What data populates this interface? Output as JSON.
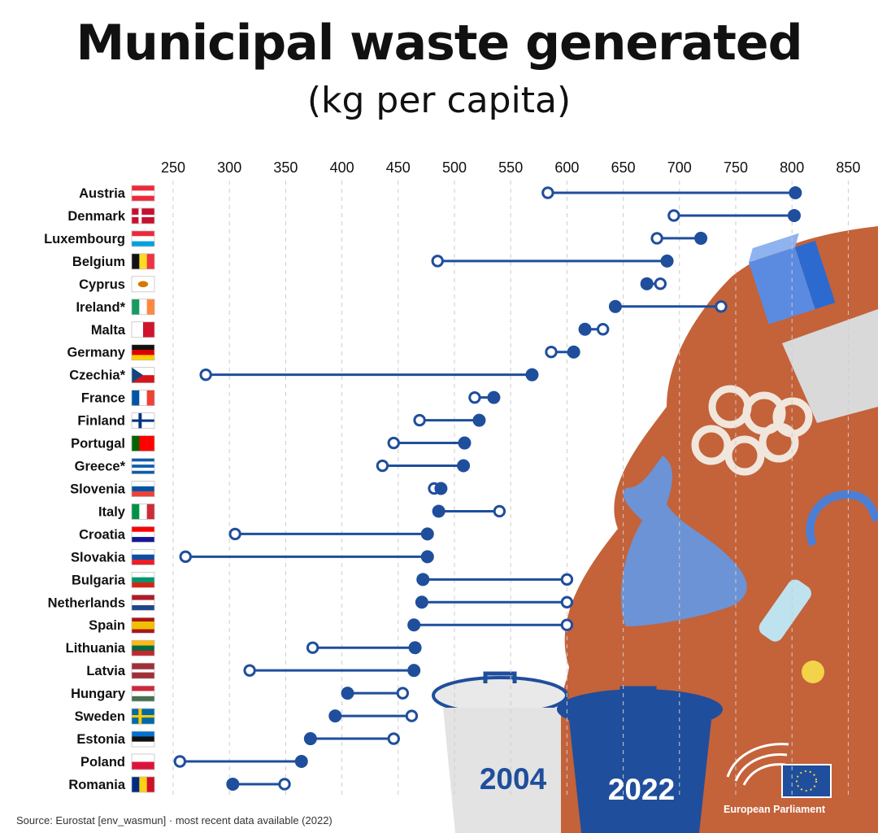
{
  "header": {
    "title": "Municipal waste generated",
    "subtitle": "(kg per capita)"
  },
  "footer": {
    "source": "Source: Eurostat [env_wasmun]  ·  most recent data available (2022)",
    "organisation": "European Parliament"
  },
  "legend": {
    "bin_2004": "2004",
    "bin_2022": "2022"
  },
  "colors": {
    "accent": "#1f4e9c",
    "background_blob": "#c4623a",
    "grid": "#cccccc"
  },
  "chart_data": {
    "type": "dumbbell",
    "xlim": [
      225,
      860
    ],
    "x_ticks": [
      250,
      300,
      350,
      400,
      450,
      500,
      550,
      600,
      650,
      700,
      750,
      800,
      850
    ],
    "grid": true,
    "legend_position": "bottom-right",
    "series": [
      {
        "name": "2004",
        "marker": "hollow circle"
      },
      {
        "name": "2022",
        "marker": "filled circle"
      }
    ],
    "categories": [
      "Austria",
      "Denmark",
      "Luxembourg",
      "Belgium",
      "Cyprus",
      "Ireland*",
      "Malta",
      "Germany",
      "Czechia*",
      "France",
      "Finland",
      "Portugal",
      "Greece*",
      "Slovenia",
      "Italy",
      "Croatia",
      "Slovakia",
      "Bulgaria",
      "Netherlands",
      "Spain",
      "Lithuania",
      "Latvia",
      "Hungary",
      "Sweden",
      "Estonia",
      "Poland",
      "Romania"
    ],
    "values_2004": [
      583,
      695,
      680,
      485,
      683,
      737,
      632,
      586,
      279,
      518,
      469,
      446,
      436,
      482,
      540,
      305,
      261,
      600,
      600,
      600,
      374,
      318,
      454,
      462,
      446,
      256,
      349
    ],
    "values_2022": [
      803,
      802,
      719,
      689,
      671,
      643,
      616,
      606,
      569,
      535,
      522,
      509,
      508,
      488,
      486,
      476,
      476,
      472,
      471,
      464,
      465,
      464,
      405,
      394,
      372,
      364,
      303
    ],
    "flags": [
      "AT",
      "DK",
      "LU",
      "BE",
      "CY",
      "IE",
      "MT",
      "DE",
      "CZ",
      "FR",
      "FI",
      "PT",
      "GR",
      "SI",
      "IT",
      "HR",
      "SK",
      "BG",
      "NL",
      "ES",
      "LT",
      "LV",
      "HU",
      "SE",
      "EE",
      "PL",
      "RO"
    ]
  }
}
